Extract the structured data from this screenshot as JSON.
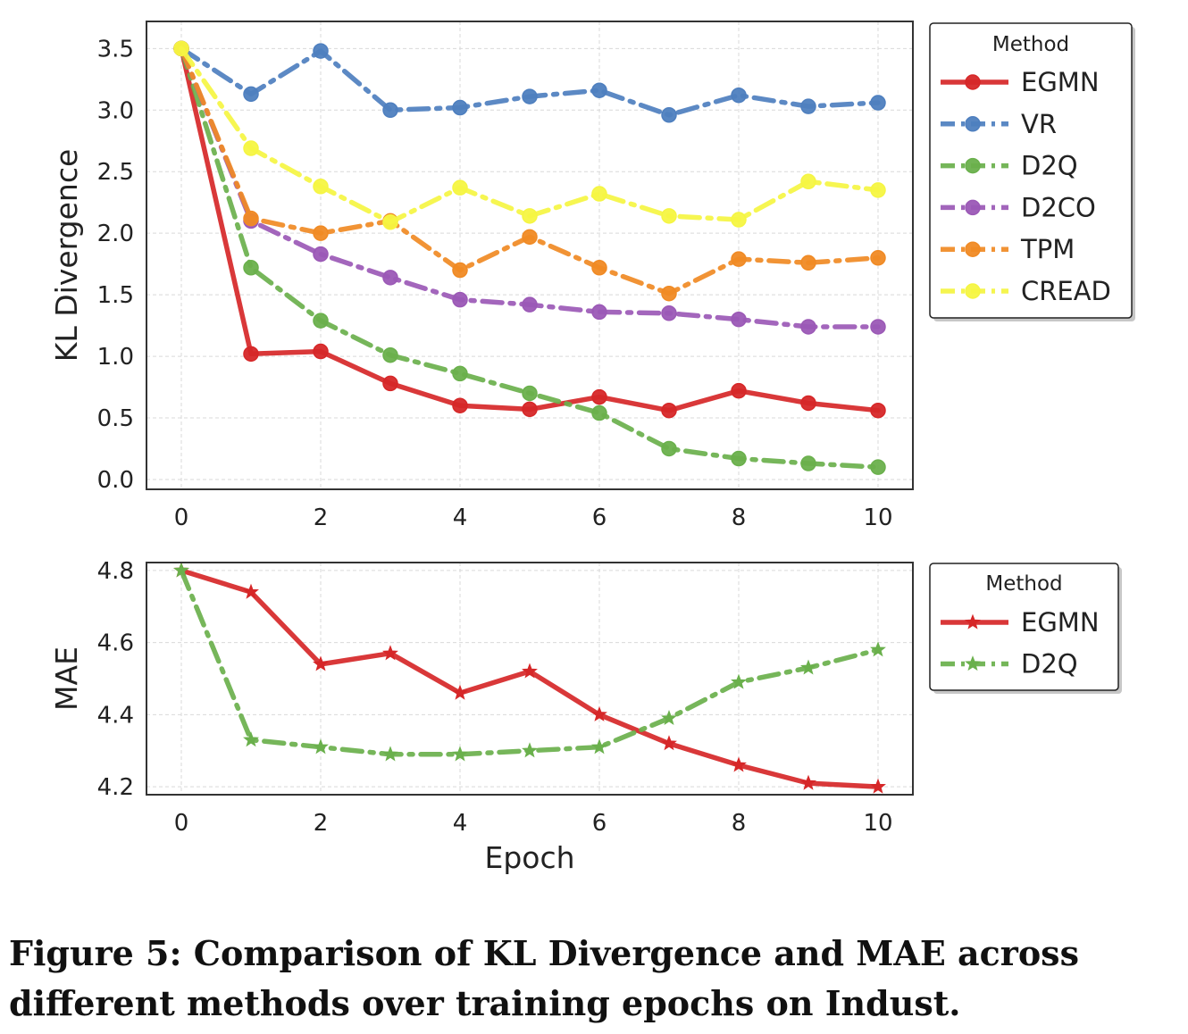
{
  "chart_data": [
    {
      "type": "line",
      "ylabel": "KL Divergence",
      "xlabel": "",
      "x": [
        0,
        1,
        2,
        3,
        4,
        5,
        6,
        7,
        8,
        9,
        10
      ],
      "xticks": [
        0,
        2,
        4,
        6,
        8,
        10
      ],
      "yticks": [
        0.0,
        0.5,
        1.0,
        1.5,
        2.0,
        2.5,
        3.0,
        3.5
      ],
      "xlim": [
        -0.5,
        10.5
      ],
      "ylim": [
        -0.08,
        3.72
      ],
      "grid": true,
      "legend_title": "Method",
      "legend_position": "outside-right",
      "series": [
        {
          "name": "EGMN",
          "color": "#d62728",
          "style": "solid",
          "marker": "circle",
          "values": [
            3.5,
            1.02,
            1.04,
            0.78,
            0.6,
            0.57,
            0.67,
            0.56,
            0.72,
            0.62,
            0.56
          ]
        },
        {
          "name": "VR",
          "color": "#4e7fbf",
          "style": "dashdot",
          "marker": "circle",
          "values": [
            3.5,
            3.13,
            3.48,
            3.0,
            3.02,
            3.11,
            3.16,
            2.96,
            3.12,
            3.03,
            3.06
          ]
        },
        {
          "name": "D2Q",
          "color": "#6ab04c",
          "style": "dashdot",
          "marker": "circle",
          "values": [
            3.5,
            1.72,
            1.29,
            1.01,
            0.86,
            0.7,
            0.54,
            0.25,
            0.17,
            0.13,
            0.1
          ]
        },
        {
          "name": "D2CO",
          "color": "#9b59b6",
          "style": "dashdot",
          "marker": "circle",
          "values": [
            3.5,
            2.1,
            1.83,
            1.64,
            1.46,
            1.42,
            1.36,
            1.35,
            1.3,
            1.24,
            1.24
          ]
        },
        {
          "name": "TPM",
          "color": "#f08a24",
          "style": "dashdot",
          "marker": "circle",
          "values": [
            3.5,
            2.12,
            2.0,
            2.1,
            1.7,
            1.97,
            1.72,
            1.51,
            1.79,
            1.76,
            1.8
          ]
        },
        {
          "name": "CREAD",
          "color": "#f5f542",
          "style": "dashdot",
          "marker": "circle",
          "values": [
            3.5,
            2.69,
            2.38,
            2.09,
            2.37,
            2.14,
            2.32,
            2.14,
            2.11,
            2.42,
            2.35
          ]
        }
      ]
    },
    {
      "type": "line",
      "ylabel": "MAE",
      "xlabel": "Epoch",
      "x": [
        0,
        1,
        2,
        3,
        4,
        5,
        6,
        7,
        8,
        9,
        10
      ],
      "xticks": [
        0,
        2,
        4,
        6,
        8,
        10
      ],
      "yticks": [
        4.2,
        4.4,
        4.6,
        4.8
      ],
      "xlim": [
        -0.5,
        10.5
      ],
      "ylim": [
        4.178,
        4.822
      ],
      "grid": true,
      "legend_title": "Method",
      "legend_position": "outside-right",
      "series": [
        {
          "name": "EGMN",
          "color": "#d62728",
          "style": "solid",
          "marker": "star",
          "values": [
            4.8,
            4.74,
            4.54,
            4.57,
            4.46,
            4.52,
            4.4,
            4.32,
            4.26,
            4.21,
            4.2
          ]
        },
        {
          "name": "D2Q",
          "color": "#6ab04c",
          "style": "dashdot",
          "marker": "star",
          "values": [
            4.8,
            4.33,
            4.31,
            4.29,
            4.29,
            4.3,
            4.31,
            4.39,
            4.49,
            4.53,
            4.58
          ]
        }
      ]
    }
  ],
  "caption": "Figure 5: Comparison of KL Divergence and MAE across different methods over training epochs on Indust."
}
